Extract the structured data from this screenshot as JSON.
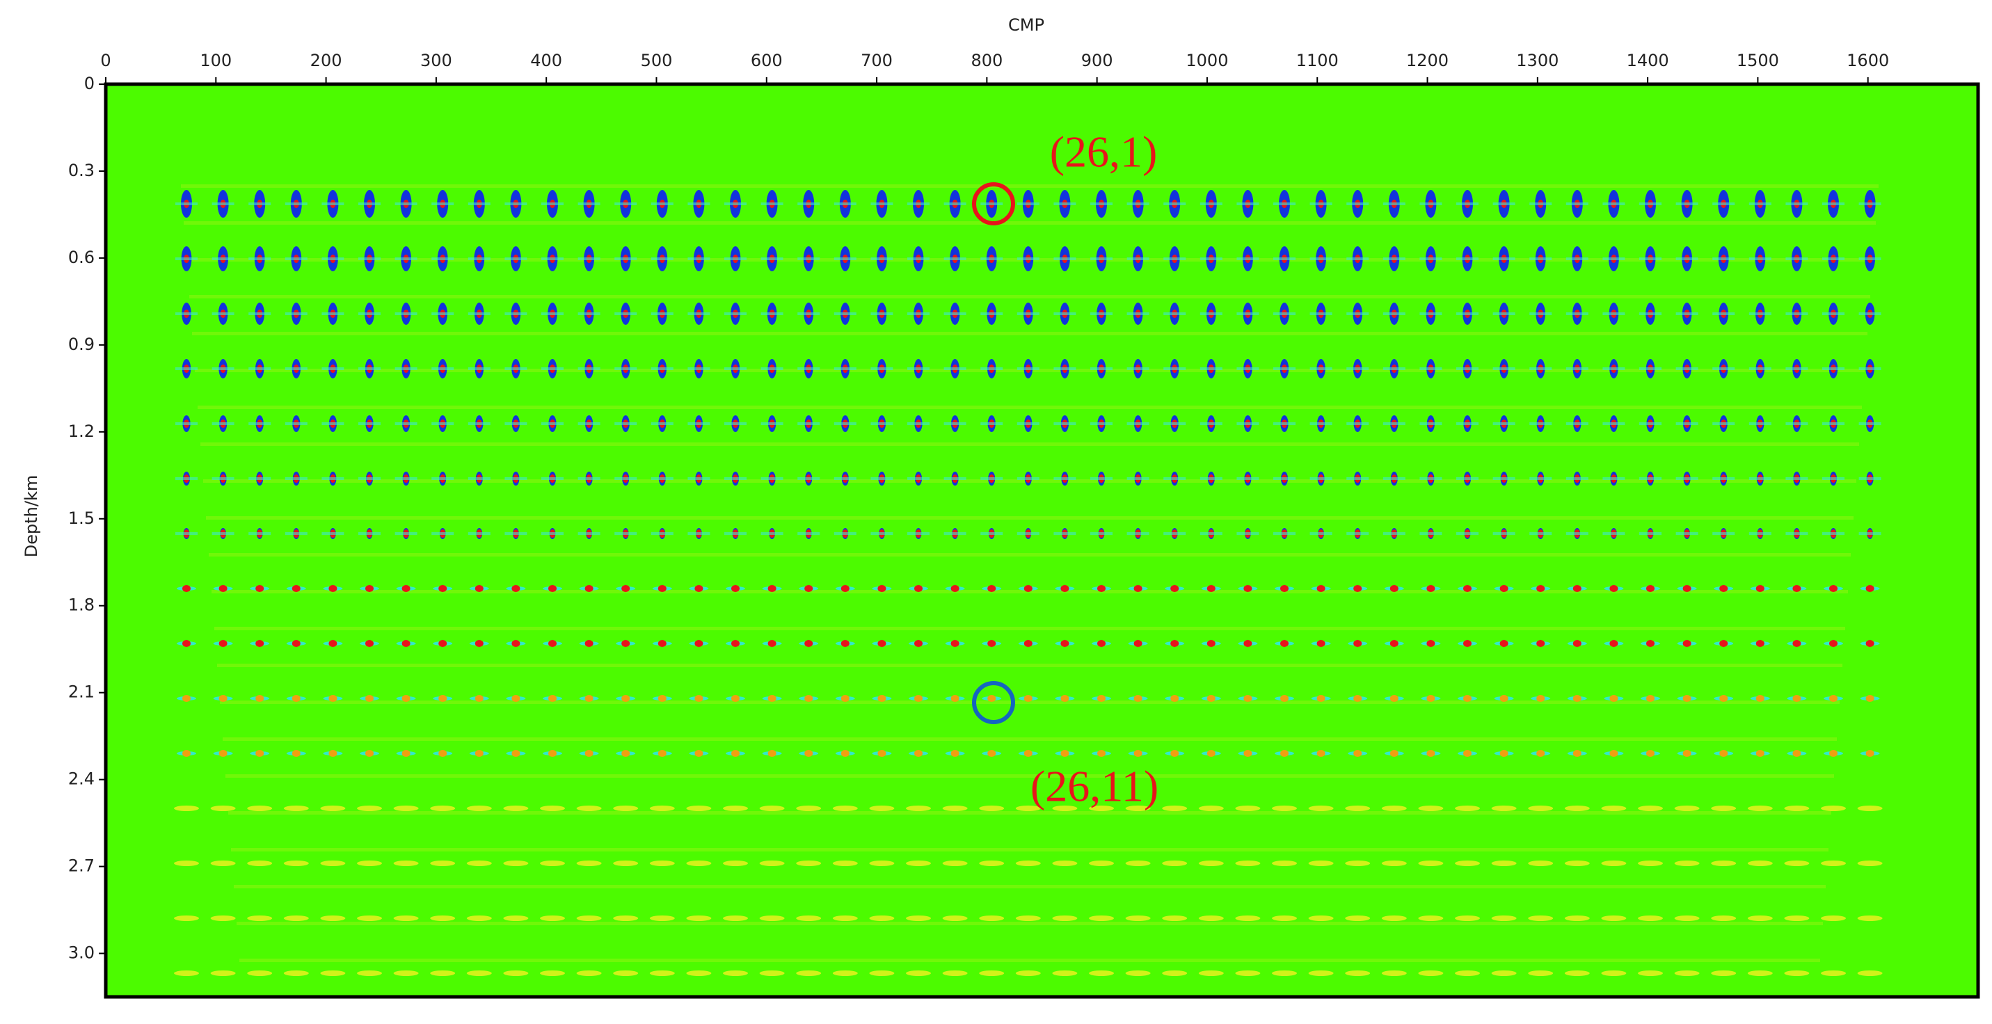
{
  "chart_data": {
    "type": "image",
    "x_label": "CMP",
    "y_label": "Depth/km",
    "xlim": [
      0,
      1700
    ],
    "xticks": [
      0,
      100,
      200,
      300,
      400,
      500,
      600,
      700,
      800,
      900,
      1000,
      1100,
      1200,
      1300,
      1400,
      1500,
      1600
    ],
    "ylim": [
      0,
      3.15
    ],
    "yticks": [
      0,
      0.3,
      0.6,
      0.9,
      1.2,
      1.5,
      1.8,
      2.1,
      2.4,
      2.7,
      {
        "value": 3,
        "label": "3.0"
      }
    ],
    "annotations": [
      "(26,1)",
      "(26,11)"
    ]
  }
}
